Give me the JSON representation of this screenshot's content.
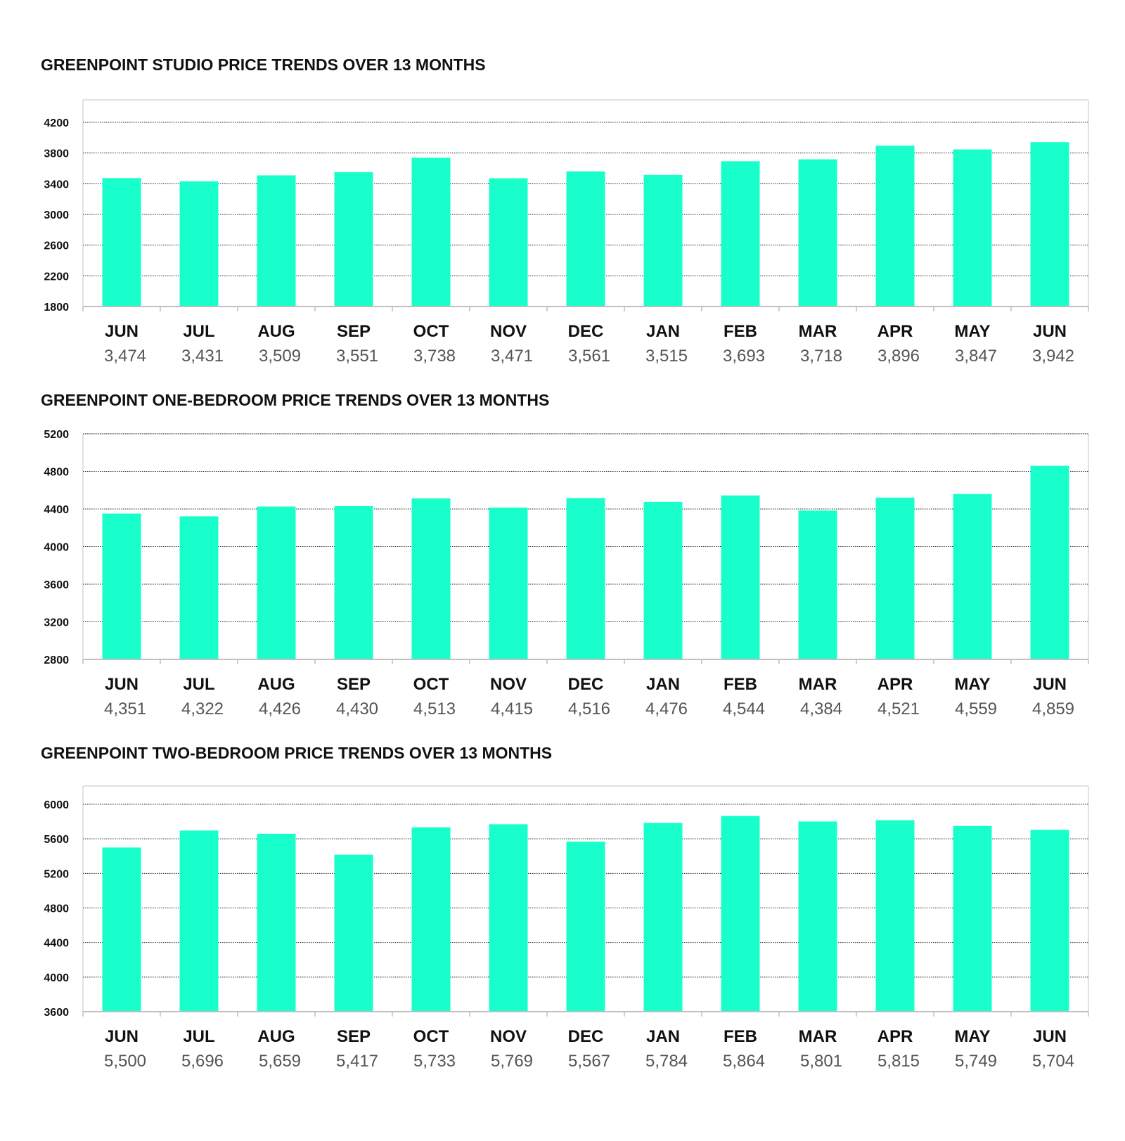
{
  "style": {
    "bar_color": "#19ffcc"
  },
  "chart_data": [
    {
      "type": "bar",
      "title": "GREENPOINT STUDIO PRICE TRENDS OVER 13 MONTHS",
      "categories": [
        "JUN",
        "JUL",
        "AUG",
        "SEP",
        "OCT",
        "NOV",
        "DEC",
        "JAN",
        "FEB",
        "MAR",
        "APR",
        "MAY",
        "JUN"
      ],
      "values": [
        3474,
        3431,
        3509,
        3551,
        3738,
        3471,
        3561,
        3515,
        3693,
        3718,
        3896,
        3847,
        3942
      ],
      "value_labels": [
        "3,474",
        "3,431",
        "3,509",
        "3,551",
        "3,738",
        "3,471",
        "3,561",
        "3,515",
        "3,693",
        "3,718",
        "3,896",
        "3,847",
        "3,942"
      ],
      "yticks": [
        "4200",
        "3800",
        "3400",
        "3000",
        "2600",
        "2200",
        "1800"
      ],
      "ylim": [
        1800,
        4200
      ],
      "grid": true
    },
    {
      "type": "bar",
      "title": "GREENPOINT ONE-BEDROOM PRICE TRENDS OVER 13 MONTHS",
      "categories": [
        "JUN",
        "JUL",
        "AUG",
        "SEP",
        "OCT",
        "NOV",
        "DEC",
        "JAN",
        "FEB",
        "MAR",
        "APR",
        "MAY",
        "JUN"
      ],
      "values": [
        4351,
        4322,
        4426,
        4430,
        4513,
        4415,
        4516,
        4476,
        4544,
        4384,
        4521,
        4559,
        4859
      ],
      "value_labels": [
        "4,351",
        "4,322",
        "4,426",
        "4,430",
        "4,513",
        "4,415",
        "4,516",
        "4,476",
        "4,544",
        "4,384",
        "4,521",
        "4,559",
        "4,859"
      ],
      "yticks": [
        "5200",
        "4800",
        "4400",
        "4000",
        "3600",
        "3200",
        "2800"
      ],
      "ylim": [
        2800,
        5200
      ],
      "grid": true
    },
    {
      "type": "bar",
      "title": "GREENPOINT TWO-BEDROOM PRICE TRENDS OVER 13 MONTHS",
      "categories": [
        "JUN",
        "JUL",
        "AUG",
        "SEP",
        "OCT",
        "NOV",
        "DEC",
        "JAN",
        "FEB",
        "MAR",
        "APR",
        "MAY",
        "JUN"
      ],
      "values": [
        5500,
        5696,
        5659,
        5417,
        5733,
        5769,
        5567,
        5784,
        5864,
        5801,
        5815,
        5749,
        5704
      ],
      "value_labels": [
        "5,500",
        "5,696",
        "5,659",
        "5,417",
        "5,733",
        "5,769",
        "5,567",
        "5,784",
        "5,864",
        "5,801",
        "5,815",
        "5,749",
        "5,704"
      ],
      "yticks": [
        "6000",
        "5600",
        "5200",
        "4800",
        "4400",
        "4000",
        "3600"
      ],
      "ylim": [
        3600,
        6000
      ],
      "grid": true
    }
  ]
}
